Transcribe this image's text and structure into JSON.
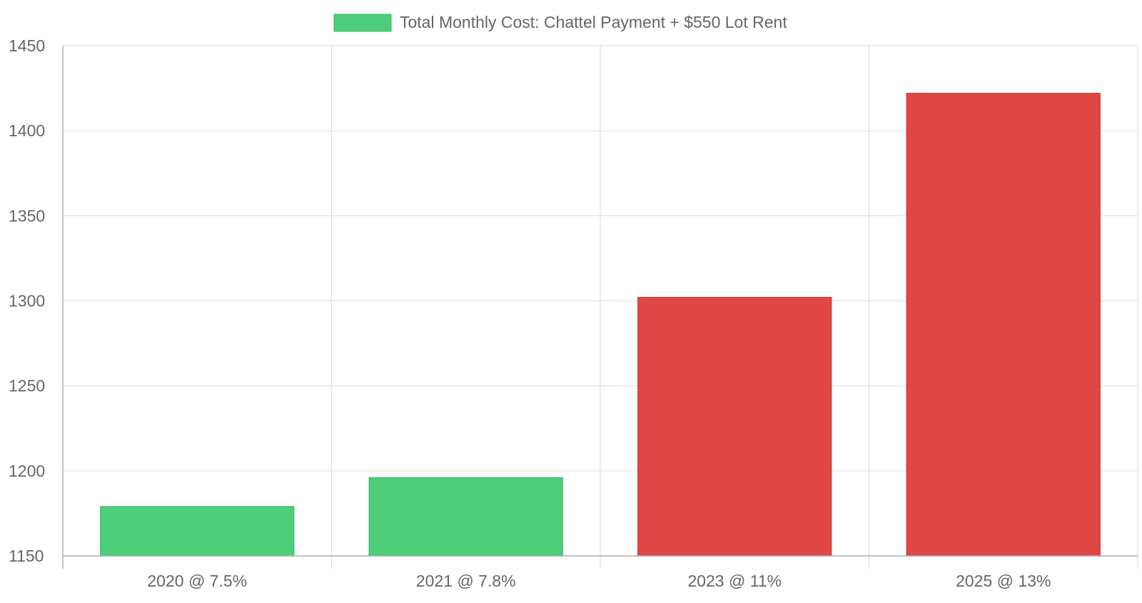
{
  "chart_data": {
    "type": "bar",
    "title": "",
    "xlabel": "",
    "ylabel": "",
    "categories": [
      "2020 @ 7.5%",
      "2021 @ 7.8%",
      "2023 @ 11%",
      "2025 @ 13%"
    ],
    "series": [
      {
        "name": "Total Monthly Cost: Chattel Payment + $550 Lot Rent",
        "values": [
          1179,
          1196,
          1302,
          1422
        ],
        "colors": [
          "#4cce7a",
          "#4cce7a",
          "#e04646",
          "#e04646"
        ]
      }
    ],
    "ylim": [
      1150,
      1450
    ],
    "yticks": [
      1150,
      1200,
      1250,
      1300,
      1350,
      1400,
      1450
    ],
    "grid": true,
    "legend": {
      "position": "top-center",
      "label": "Total Monthly Cost: Chattel Payment + $550 Lot Rent",
      "swatch_color": "#4cce7a"
    },
    "colors": {
      "green_fill": "#4cce7a",
      "green_border": "#3bb566",
      "red_fill": "#e04646",
      "red_border": "#c83a3a",
      "grid": "#e0e0e0",
      "axis": "#b0b0b0",
      "text": "#666666"
    }
  }
}
